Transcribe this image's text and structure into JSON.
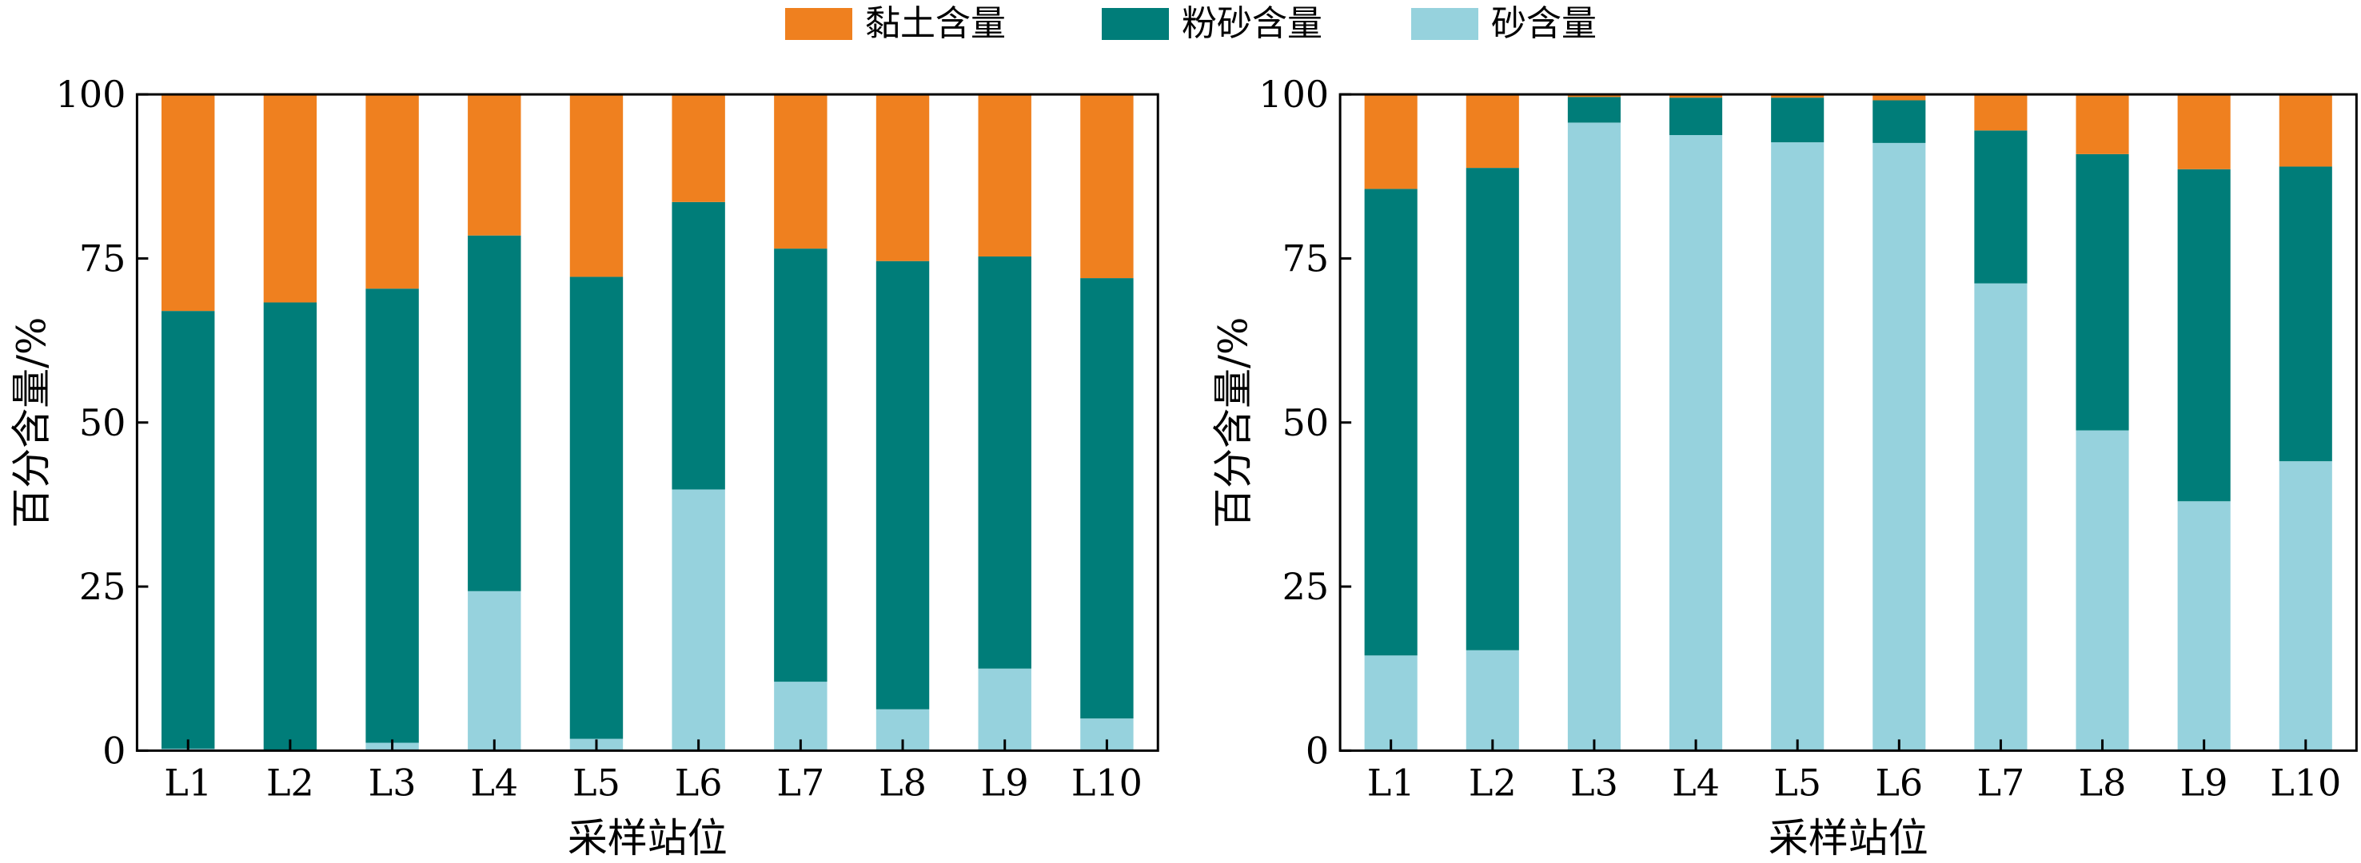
{
  "legend": {
    "items": [
      {
        "label": "黏土含量",
        "color": "#EF801F"
      },
      {
        "label": "粉砂含量",
        "color": "#007D79"
      },
      {
        "label": "砂含量",
        "color": "#96D2DD"
      }
    ]
  },
  "chart_data": [
    {
      "type": "bar",
      "stacked": true,
      "categories": [
        "L1",
        "L2",
        "L3",
        "L4",
        "L5",
        "L6",
        "L7",
        "L8",
        "L9",
        "L10"
      ],
      "xlabel": "采样站位",
      "ylabel": "百分含量/%",
      "ylim": [
        0,
        100
      ],
      "yticks": [
        0,
        25,
        50,
        75,
        100
      ],
      "grid": false,
      "legend_position": "top-center",
      "series": [
        {
          "name": "砂含量",
          "color": "#96D2DD",
          "values": [
            0.3,
            0,
            1.2,
            24.3,
            1.8,
            39.8,
            10.5,
            6.3,
            12.5,
            4.9
          ]
        },
        {
          "name": "粉砂含量",
          "color": "#007D79",
          "values": [
            66.7,
            68.3,
            69.2,
            54.2,
            70.4,
            43.8,
            66.0,
            68.3,
            62.8,
            67.1
          ]
        },
        {
          "name": "黏土含量",
          "color": "#EF801F",
          "values": [
            33.0,
            31.7,
            29.6,
            21.5,
            27.8,
            16.4,
            23.5,
            25.4,
            24.7,
            28.0
          ]
        }
      ]
    },
    {
      "type": "bar",
      "stacked": true,
      "categories": [
        "L1",
        "L2",
        "L3",
        "L4",
        "L5",
        "L6",
        "L7",
        "L8",
        "L9",
        "L10"
      ],
      "xlabel": "采样站位",
      "ylabel": "百分含量/%",
      "ylim": [
        0,
        100
      ],
      "yticks": [
        0,
        25,
        50,
        75,
        100
      ],
      "grid": false,
      "legend_position": "top-center",
      "series": [
        {
          "name": "砂含量",
          "color": "#96D2DD",
          "values": [
            14.5,
            15.3,
            95.7,
            93.8,
            92.7,
            92.6,
            71.2,
            48.8,
            38.0,
            44.1
          ]
        },
        {
          "name": "粉砂含量",
          "color": "#007D79",
          "values": [
            71.1,
            73.5,
            3.9,
            5.7,
            6.8,
            6.5,
            23.3,
            42.1,
            50.6,
            44.9
          ]
        },
        {
          "name": "黏土含量",
          "color": "#EF801F",
          "values": [
            14.4,
            11.2,
            0.4,
            0.5,
            0.5,
            0.9,
            5.5,
            9.1,
            11.4,
            11.0
          ]
        }
      ]
    }
  ]
}
